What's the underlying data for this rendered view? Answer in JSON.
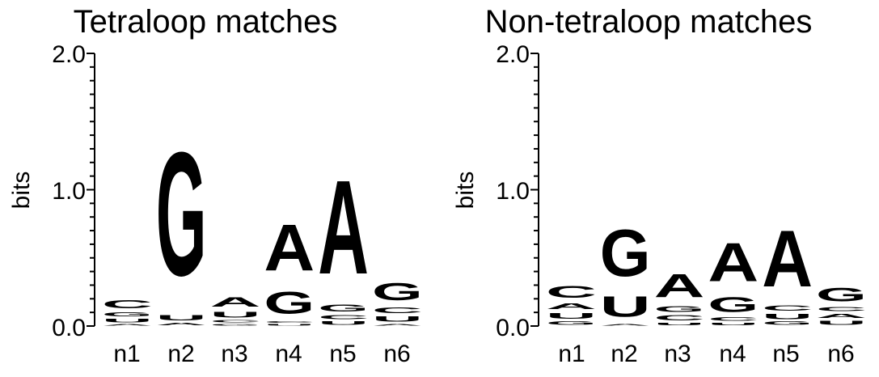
{
  "colors": {
    "G": "#0000ee",
    "C": "#0000ee",
    "A": "#ff8c00",
    "U": "#ff8c00",
    "axis": "#000000"
  },
  "chart_data": [
    {
      "type": "sequence-logo",
      "title": "Tetraloop matches",
      "ylabel": "bits",
      "ylim": [
        0,
        2.0
      ],
      "yticks": [
        "2.0",
        "1.0",
        "0.0"
      ],
      "positions": [
        "n1",
        "n2",
        "n3",
        "n4",
        "n5",
        "n6"
      ],
      "stacks": [
        [
          {
            "letter": "A",
            "bits": 0.02
          },
          {
            "letter": "U",
            "bits": 0.04
          },
          {
            "letter": "G",
            "bits": 0.05
          },
          {
            "letter": "C",
            "bits": 0.1
          }
        ],
        [
          {
            "letter": "A",
            "bits": 0.03
          },
          {
            "letter": "U",
            "bits": 0.06
          },
          {
            "letter": "G",
            "bits": 1.45
          }
        ],
        [
          {
            "letter": "G",
            "bits": 0.02
          },
          {
            "letter": "C",
            "bits": 0.03
          },
          {
            "letter": "U",
            "bits": 0.07
          },
          {
            "letter": "A",
            "bits": 0.11
          }
        ],
        [
          {
            "letter": "U",
            "bits": 0.02
          },
          {
            "letter": "C",
            "bits": 0.02
          },
          {
            "letter": "G",
            "bits": 0.26
          },
          {
            "letter": "A",
            "bits": 0.54
          }
        ],
        [
          {
            "letter": "U",
            "bits": 0.04
          },
          {
            "letter": "C",
            "bits": 0.05
          },
          {
            "letter": "G",
            "bits": 0.08
          },
          {
            "letter": "A",
            "bits": 1.1
          }
        ],
        [
          {
            "letter": "A",
            "bits": 0.02
          },
          {
            "letter": "U",
            "bits": 0.06
          },
          {
            "letter": "C",
            "bits": 0.07
          },
          {
            "letter": "G",
            "bits": 0.2
          }
        ]
      ]
    },
    {
      "type": "sequence-logo",
      "title": "Non-tetraloop matches",
      "ylabel": "bits",
      "ylim": [
        0,
        2.0
      ],
      "yticks": [
        "2.0",
        "1.0",
        "0.0"
      ],
      "positions": [
        "n1",
        "n2",
        "n3",
        "n4",
        "n5",
        "n6"
      ],
      "stacks": [
        [
          {
            "letter": "G",
            "bits": 0.04
          },
          {
            "letter": "U",
            "bits": 0.07
          },
          {
            "letter": "A",
            "bits": 0.07
          },
          {
            "letter": "C",
            "bits": 0.14
          }
        ],
        [
          {
            "letter": "A",
            "bits": 0.02
          },
          {
            "letter": "U",
            "bits": 0.24
          },
          {
            "letter": "G",
            "bits": 0.55
          }
        ],
        [
          {
            "letter": "U",
            "bits": 0.03
          },
          {
            "letter": "C",
            "bits": 0.06
          },
          {
            "letter": "G",
            "bits": 0.07
          },
          {
            "letter": "A",
            "bits": 0.27
          }
        ],
        [
          {
            "letter": "U",
            "bits": 0.03
          },
          {
            "letter": "C",
            "bits": 0.04
          },
          {
            "letter": "G",
            "bits": 0.17
          },
          {
            "letter": "A",
            "bits": 0.45
          }
        ],
        [
          {
            "letter": "G",
            "bits": 0.04
          },
          {
            "letter": "U",
            "bits": 0.06
          },
          {
            "letter": "C",
            "bits": 0.06
          },
          {
            "letter": "A",
            "bits": 0.66
          }
        ],
        [
          {
            "letter": "U",
            "bits": 0.05
          },
          {
            "letter": "A",
            "bits": 0.05
          },
          {
            "letter": "C",
            "bits": 0.05
          },
          {
            "letter": "G",
            "bits": 0.16
          }
        ]
      ]
    }
  ]
}
